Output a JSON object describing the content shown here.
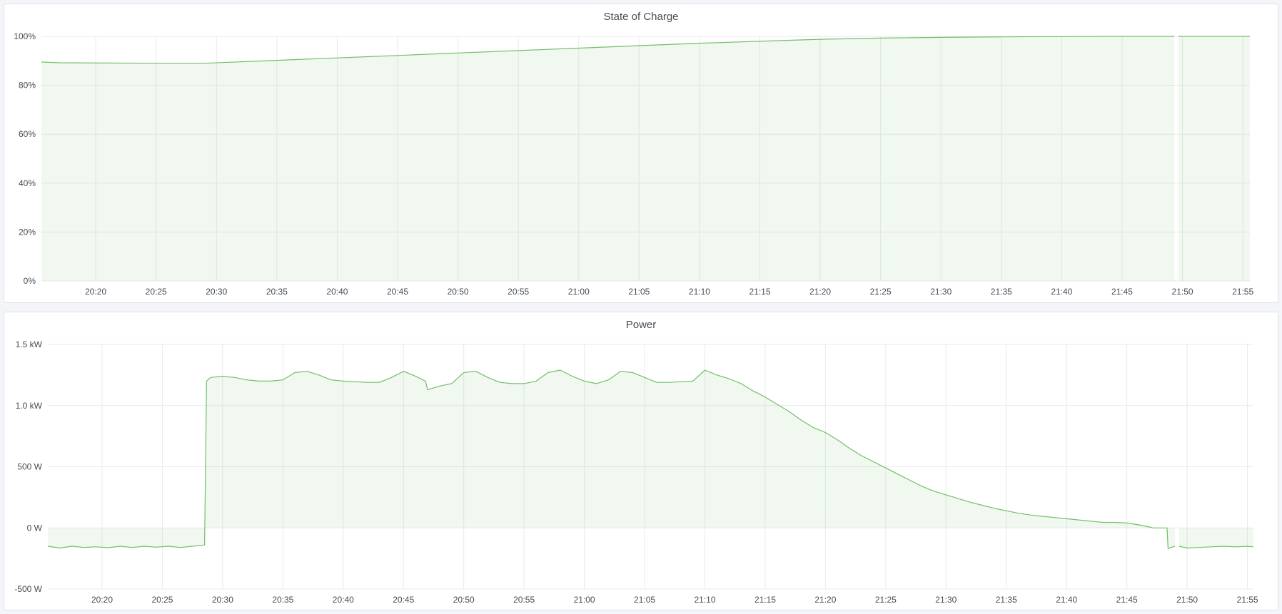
{
  "chart_data": [
    {
      "type": "area",
      "title": "State of Charge",
      "xlim": [
        "20:15:30",
        "21:55:35"
      ],
      "ylim": [
        0,
        100
      ],
      "y_ticks": [
        {
          "v": 0,
          "label": "0%"
        },
        {
          "v": 20,
          "label": "20%"
        },
        {
          "v": 40,
          "label": "40%"
        },
        {
          "v": 60,
          "label": "60%"
        },
        {
          "v": 80,
          "label": "80%"
        },
        {
          "v": 100,
          "label": "100%"
        }
      ],
      "x_ticks": [
        "20:20",
        "20:25",
        "20:30",
        "20:35",
        "20:40",
        "20:45",
        "20:50",
        "20:55",
        "21:00",
        "21:05",
        "21:10",
        "21:15",
        "21:20",
        "21:25",
        "21:30",
        "21:35",
        "21:40",
        "21:45",
        "21:50",
        "21:55"
      ],
      "grid": true,
      "color": "#73bf69",
      "points": [
        [
          "20:15:30",
          89.5
        ],
        [
          "20:17:00",
          89.2
        ],
        [
          "20:25:00",
          89.0
        ],
        [
          "20:29:00",
          89.0
        ],
        [
          "20:35:00",
          90.2
        ],
        [
          "20:40:00",
          91.2
        ],
        [
          "20:45:00",
          92.2
        ],
        [
          "20:50:00",
          93.2
        ],
        [
          "20:55:00",
          94.2
        ],
        [
          "21:00:00",
          95.2
        ],
        [
          "21:05:00",
          96.2
        ],
        [
          "21:10:00",
          97.2
        ],
        [
          "21:15:00",
          98.0
        ],
        [
          "21:20:00",
          98.8
        ],
        [
          "21:25:00",
          99.3
        ],
        [
          "21:30:00",
          99.6
        ],
        [
          "21:35:00",
          99.8
        ],
        [
          "21:40:00",
          99.9
        ],
        [
          "21:45:00",
          100
        ],
        [
          "21:49:20",
          100
        ],
        [
          "21:49:30",
          null
        ],
        [
          "21:49:40",
          100
        ],
        [
          "21:55:35",
          100
        ]
      ]
    },
    {
      "type": "area",
      "title": "Power",
      "xlim": [
        "20:15:30",
        "21:55:30"
      ],
      "ylim": [
        -500,
        1500
      ],
      "y_ticks": [
        {
          "v": -500,
          "label": "-500 W"
        },
        {
          "v": 0,
          "label": "0 W"
        },
        {
          "v": 500,
          "label": "500 W"
        },
        {
          "v": 1000,
          "label": "1.0 kW"
        },
        {
          "v": 1500,
          "label": "1.5 kW"
        }
      ],
      "x_ticks": [
        "20:20",
        "20:25",
        "20:30",
        "20:35",
        "20:40",
        "20:45",
        "20:50",
        "20:55",
        "21:00",
        "21:05",
        "21:10",
        "21:15",
        "21:20",
        "21:25",
        "21:30",
        "21:35",
        "21:40",
        "21:45",
        "21:50",
        "21:55"
      ],
      "grid": true,
      "color": "#73bf69",
      "points": [
        [
          "20:15:30",
          -150
        ],
        [
          "20:16:30",
          -165
        ],
        [
          "20:17:30",
          -150
        ],
        [
          "20:18:30",
          -160
        ],
        [
          "20:19:30",
          -155
        ],
        [
          "20:20:30",
          -162
        ],
        [
          "20:21:30",
          -150
        ],
        [
          "20:22:30",
          -160
        ],
        [
          "20:23:30",
          -150
        ],
        [
          "20:24:30",
          -158
        ],
        [
          "20:25:30",
          -150
        ],
        [
          "20:26:30",
          -160
        ],
        [
          "20:27:30",
          -150
        ],
        [
          "20:28:30",
          -140
        ],
        [
          "20:28:40",
          1200
        ],
        [
          "20:29:00",
          1230
        ],
        [
          "20:30:00",
          1240
        ],
        [
          "20:31:00",
          1230
        ],
        [
          "20:32:00",
          1210
        ],
        [
          "20:33:00",
          1200
        ],
        [
          "20:34:00",
          1200
        ],
        [
          "20:35:00",
          1210
        ],
        [
          "20:36:00",
          1270
        ],
        [
          "20:37:00",
          1280
        ],
        [
          "20:38:00",
          1250
        ],
        [
          "20:39:00",
          1210
        ],
        [
          "20:40:00",
          1200
        ],
        [
          "20:41:00",
          1195
        ],
        [
          "20:42:00",
          1190
        ],
        [
          "20:43:00",
          1190
        ],
        [
          "20:44:00",
          1230
        ],
        [
          "20:45:00",
          1280
        ],
        [
          "20:46:00",
          1240
        ],
        [
          "20:46:50",
          1200
        ],
        [
          "20:47:00",
          1130
        ],
        [
          "20:48:00",
          1160
        ],
        [
          "20:49:00",
          1180
        ],
        [
          "20:50:00",
          1270
        ],
        [
          "20:51:00",
          1280
        ],
        [
          "20:52:00",
          1230
        ],
        [
          "20:53:00",
          1190
        ],
        [
          "20:54:00",
          1180
        ],
        [
          "20:55:00",
          1180
        ],
        [
          "20:56:00",
          1200
        ],
        [
          "20:57:00",
          1270
        ],
        [
          "20:58:00",
          1290
        ],
        [
          "20:59:00",
          1240
        ],
        [
          "21:00:00",
          1200
        ],
        [
          "21:01:00",
          1180
        ],
        [
          "21:02:00",
          1210
        ],
        [
          "21:03:00",
          1280
        ],
        [
          "21:04:00",
          1270
        ],
        [
          "21:05:00",
          1230
        ],
        [
          "21:06:00",
          1190
        ],
        [
          "21:07:00",
          1190
        ],
        [
          "21:08:00",
          1195
        ],
        [
          "21:09:00",
          1200
        ],
        [
          "21:10:00",
          1290
        ],
        [
          "21:11:00",
          1250
        ],
        [
          "21:12:00",
          1220
        ],
        [
          "21:13:00",
          1180
        ],
        [
          "21:14:00",
          1120
        ],
        [
          "21:15:00",
          1070
        ],
        [
          "21:16:00",
          1010
        ],
        [
          "21:17:00",
          950
        ],
        [
          "21:18:00",
          880
        ],
        [
          "21:19:00",
          820
        ],
        [
          "21:20:00",
          780
        ],
        [
          "21:21:00",
          720
        ],
        [
          "21:22:00",
          650
        ],
        [
          "21:23:00",
          590
        ],
        [
          "21:24:00",
          540
        ],
        [
          "21:25:00",
          490
        ],
        [
          "21:26:00",
          440
        ],
        [
          "21:27:00",
          390
        ],
        [
          "21:28:00",
          340
        ],
        [
          "21:29:00",
          300
        ],
        [
          "21:30:00",
          270
        ],
        [
          "21:31:00",
          240
        ],
        [
          "21:32:00",
          210
        ],
        [
          "21:33:00",
          185
        ],
        [
          "21:34:00",
          160
        ],
        [
          "21:35:00",
          140
        ],
        [
          "21:36:00",
          120
        ],
        [
          "21:37:00",
          105
        ],
        [
          "21:38:00",
          95
        ],
        [
          "21:39:00",
          85
        ],
        [
          "21:40:00",
          75
        ],
        [
          "21:41:00",
          65
        ],
        [
          "21:42:00",
          55
        ],
        [
          "21:43:00",
          45
        ],
        [
          "21:44:00",
          45
        ],
        [
          "21:45:00",
          40
        ],
        [
          "21:46:00",
          25
        ],
        [
          "21:47:00",
          5
        ],
        [
          "21:47:10",
          0
        ],
        [
          "21:48:20",
          0
        ],
        [
          "21:48:25",
          -170
        ],
        [
          "21:48:40",
          -160
        ],
        [
          "21:49:00",
          -150
        ],
        [
          "21:49:10",
          null
        ],
        [
          "21:49:20",
          -150
        ],
        [
          "21:50:00",
          -165
        ],
        [
          "21:51:00",
          -160
        ],
        [
          "21:52:00",
          -155
        ],
        [
          "21:53:00",
          -150
        ],
        [
          "21:54:00",
          -155
        ],
        [
          "21:55:00",
          -150
        ],
        [
          "21:55:30",
          -155
        ]
      ]
    }
  ]
}
